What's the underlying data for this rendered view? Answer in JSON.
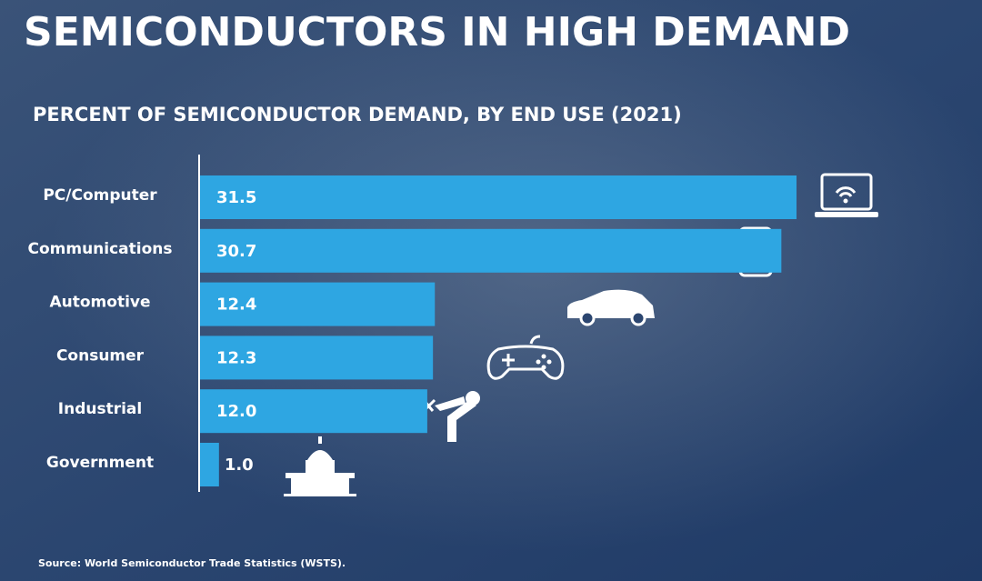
{
  "chart_data": {
    "type": "bar",
    "orientation": "horizontal",
    "title": "SEMICONDUCTORS IN HIGH DEMAND",
    "subtitle": "PERCENT OF SEMICONDUCTOR DEMAND, BY END USE (2021)",
    "categories": [
      "PC/Computer",
      "Communications",
      "Automotive",
      "Consumer",
      "Industrial",
      "Government"
    ],
    "values": [
      31.5,
      30.7,
      12.4,
      12.3,
      12.0,
      1.0
    ],
    "value_labels": [
      "31.5",
      "30.7",
      "12.4",
      "12.3",
      "12.0",
      "1.0"
    ],
    "color": "#2ea6e2",
    "source": "Source: World Semiconductor Trade Statistics (WSTS)."
  }
}
